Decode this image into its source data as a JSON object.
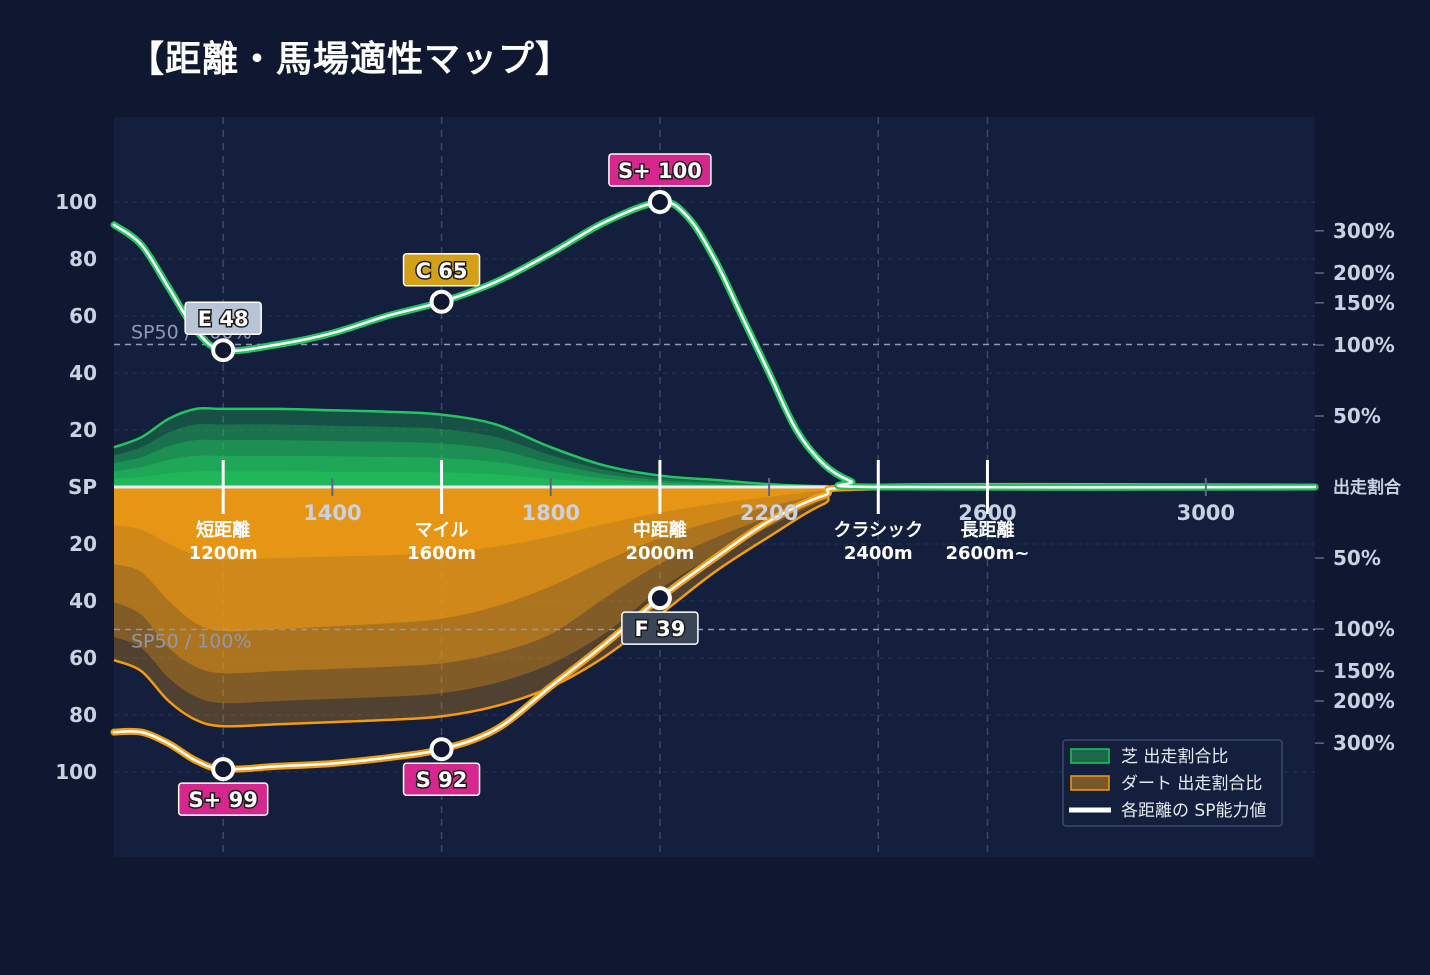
{
  "title": "【距離・馬場適性マップ】",
  "colors": {
    "background": "#0f1830",
    "plot_bg": "#131f3c",
    "turf": "#22c55e",
    "dirt": "#f39c12",
    "white": "#ffffff",
    "badge_splus": "#d6278f",
    "badge_s": "#d6278f",
    "badge_c": "#d4a017",
    "badge_e": "#b9c4d6",
    "badge_f": "#3a4658"
  },
  "chart_data": {
    "type": "area",
    "title": "【距離・馬場適性マップ】",
    "x_ticks": [
      1400,
      1800,
      2200,
      2600,
      3000
    ],
    "xlim": [
      1000,
      3200
    ],
    "y_left_ticks_top": [
      100,
      80,
      60,
      40,
      20
    ],
    "y_left_center_label": "SP",
    "y_left_ticks_bottom": [
      20,
      40,
      60,
      80,
      100
    ],
    "y_right_ticks_top": [
      "300%",
      "200%",
      "150%",
      "100%",
      "50%"
    ],
    "y_right_center_label": "出走割合",
    "y_right_ticks_bottom": [
      "50%",
      "100%",
      "150%",
      "200%",
      "300%"
    ],
    "reference_lines": [
      {
        "label": "SP50 / 100%",
        "value": 50
      }
    ],
    "distance_categories": [
      {
        "name": "短距離",
        "distance": "1200m",
        "x": 1200
      },
      {
        "name": "マイル",
        "distance": "1600m",
        "x": 1600
      },
      {
        "name": "中距離",
        "distance": "2000m",
        "x": 2000
      },
      {
        "name": "クラシック",
        "distance": "2400m",
        "x": 2400
      },
      {
        "name": "長距離",
        "distance": "2600m~",
        "x": 2600
      }
    ],
    "series": [
      {
        "name": "芝 出走割合比",
        "surface": "turf",
        "x": [
          1000,
          1050,
          1100,
          1150,
          1200,
          1300,
          1400,
          1500,
          1600,
          1700,
          1800,
          1900,
          2000,
          2100,
          2200,
          2300,
          2400
        ],
        "ratio_pct": [
          28,
          35,
          48,
          55,
          55,
          55,
          54,
          53,
          51,
          44,
          28,
          15,
          8,
          5,
          2,
          0.5,
          0
        ],
        "sp_x": [
          1000,
          1050,
          1100,
          1150,
          1200,
          1300,
          1400,
          1500,
          1600,
          1700,
          1800,
          1900,
          2000,
          2050,
          2100,
          2150,
          2200,
          2250,
          2300,
          2350,
          2400,
          3200
        ],
        "sp": [
          92,
          85,
          70,
          55,
          48,
          50,
          54,
          60,
          65,
          72,
          82,
          93,
          100,
          95,
          80,
          60,
          40,
          20,
          8,
          2,
          0,
          0
        ]
      },
      {
        "name": "ダート 出走割合比",
        "surface": "dirt",
        "x": [
          1000,
          1050,
          1100,
          1150,
          1200,
          1300,
          1400,
          1500,
          1600,
          1700,
          1800,
          1900,
          2000,
          2100,
          2200,
          2300,
          2400
        ],
        "ratio_pct": [
          135,
          150,
          200,
          240,
          255,
          250,
          245,
          240,
          232,
          210,
          175,
          130,
          90,
          60,
          35,
          12,
          0
        ],
        "sp_x": [
          1000,
          1050,
          1100,
          1150,
          1200,
          1300,
          1400,
          1500,
          1600,
          1700,
          1800,
          1900,
          2000,
          2100,
          2200,
          2300,
          2400,
          3200
        ],
        "sp": [
          86,
          86,
          90,
          96,
          99,
          98,
          97,
          95,
          92,
          85,
          70,
          55,
          39,
          25,
          12,
          3,
          0,
          0
        ]
      }
    ],
    "sp_points": [
      {
        "surface": "turf",
        "x": 1200,
        "sp": 48,
        "grade": "E 48",
        "badge": "e"
      },
      {
        "surface": "turf",
        "x": 1600,
        "sp": 65,
        "grade": "C 65",
        "badge": "c"
      },
      {
        "surface": "turf",
        "x": 2000,
        "sp": 100,
        "grade": "S+ 100",
        "badge": "splus"
      },
      {
        "surface": "dirt",
        "x": 1200,
        "sp": 99,
        "grade": "S+ 99",
        "badge": "splus"
      },
      {
        "surface": "dirt",
        "x": 1600,
        "sp": 92,
        "grade": "S 92",
        "badge": "s"
      },
      {
        "surface": "dirt",
        "x": 2000,
        "sp": 39,
        "grade": "F 39",
        "badge": "f"
      }
    ],
    "legend": [
      {
        "label": "芝 出走割合比",
        "kind": "turf-area"
      },
      {
        "label": "ダート 出走割合比",
        "kind": "dirt-area"
      },
      {
        "label": "各距離の SP能力値",
        "kind": "sp-line"
      }
    ],
    "legend_position": "bottom-right",
    "grid": true
  }
}
